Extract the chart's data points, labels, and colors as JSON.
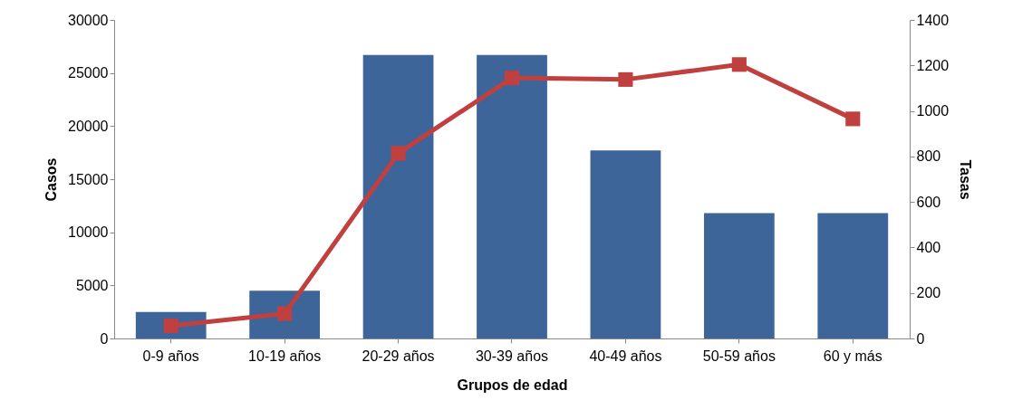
{
  "chart_data": {
    "type": "bar",
    "xlabel": "Grupos de edad",
    "ylabel": "Casos",
    "y2label": "Tasas",
    "categories": [
      "0-9 años",
      "10-19 años",
      "20-29 años",
      "30-39 años",
      "40-49 años",
      "50-59 años",
      "60 y más"
    ],
    "series": [
      {
        "color": "#3d6599",
        "values": [
          2500,
          4500,
          26700,
          26700,
          17700,
          11800,
          11800
        ]
      },
      {
        "type": "line",
        "axis": "y2",
        "color": "#c0403f",
        "marker": "square",
        "line_style": "solid",
        "values": [
          56,
          109,
          814,
          1145,
          1138,
          1204,
          965
        ]
      }
    ],
    "ylim": [
      0,
      30000
    ],
    "yticks": [
      0,
      5000,
      10000,
      15000,
      20000,
      25000,
      30000
    ],
    "y2lim": [
      0,
      1400
    ],
    "y2ticks": [
      0,
      200,
      400,
      600,
      800,
      1000,
      1200,
      1400
    ],
    "grid": false,
    "legend": false
  }
}
